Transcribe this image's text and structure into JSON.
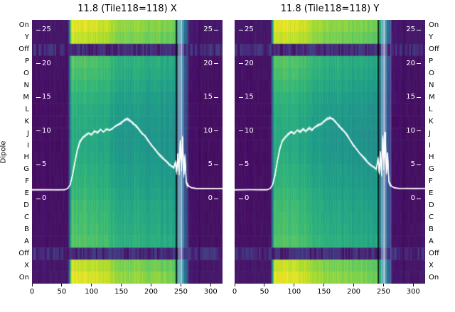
{
  "figure": {
    "background": "#ffffff",
    "overlay_color": "#ffffff",
    "colormap": "viridis",
    "dipole_axis_label": "Dipole",
    "row_labels": [
      "On",
      "Y",
      "Off",
      "P",
      "O",
      "N",
      "M",
      "L",
      "K",
      "J",
      "I",
      "H",
      "G",
      "F",
      "E",
      "D",
      "C",
      "B",
      "A",
      "Off",
      "X",
      "On"
    ],
    "x_tick_labels": [
      "0",
      "50",
      "100",
      "150",
      "200",
      "250",
      "300"
    ],
    "y_tick_labels": [
      "25",
      "20",
      "15",
      "10",
      "5",
      "0"
    ]
  },
  "chart_data": [
    {
      "type": "heatmap",
      "title": "11.8 (Tile118=118) X",
      "x_range": [
        0,
        320
      ],
      "x_ticks": [
        0,
        50,
        100,
        150,
        200,
        250,
        300
      ],
      "row_categories": [
        "On",
        "Y",
        "Off",
        "P",
        "O",
        "N",
        "M",
        "L",
        "K",
        "J",
        "I",
        "H",
        "G",
        "F",
        "E",
        "D",
        "C",
        "B",
        "A",
        "Off",
        "X",
        "On"
      ],
      "row_levels": [
        0.97,
        0.93,
        0.07,
        0.74,
        0.72,
        0.69,
        0.66,
        0.64,
        0.63,
        0.62,
        0.62,
        0.63,
        0.65,
        0.66,
        0.68,
        0.7,
        0.71,
        0.72,
        0.74,
        0.07,
        0.93,
        0.97
      ],
      "column_profile": [
        [
          0,
          0.07
        ],
        [
          60,
          0.07
        ],
        [
          66,
          1.0
        ],
        [
          112,
          0.97
        ],
        [
          140,
          0.88
        ],
        [
          178,
          0.85
        ],
        [
          210,
          0.83
        ],
        [
          240,
          0.8
        ],
        [
          248,
          0.52
        ],
        [
          258,
          0.38
        ],
        [
          264,
          0.07
        ],
        [
          320,
          0.07
        ]
      ],
      "stripes": [
        {
          "x": 16,
          "w": 2,
          "alpha": 0.5,
          "color": "#5a0c8e"
        },
        {
          "x": 24,
          "w": 1.5,
          "alpha": 0.45,
          "color": "#43077a"
        },
        {
          "x": 242.5,
          "w": 2,
          "alpha": 0.85,
          "color": "#06030c"
        },
        {
          "x": 247,
          "w": 1.5,
          "alpha": 0.8,
          "color": "#bfe0ff"
        },
        {
          "x": 250.5,
          "w": 1.5,
          "alpha": 0.95,
          "color": "#ffffff"
        },
        {
          "x": 253.5,
          "w": 1.5,
          "alpha": 0.7,
          "color": "#8fb8ff"
        },
        {
          "x": 273,
          "w": 2,
          "alpha": 0.55,
          "color": "#4b0a82"
        },
        {
          "x": 281,
          "w": 2,
          "alpha": 0.45,
          "color": "#36065f"
        }
      ],
      "line_y_ticks": [
        25,
        20,
        15,
        10,
        5,
        0
      ],
      "line_points": [
        [
          0,
          1.3
        ],
        [
          25,
          1.3
        ],
        [
          45,
          1.3
        ],
        [
          55,
          1.3
        ],
        [
          60,
          1.5
        ],
        [
          64,
          2.0
        ],
        [
          68,
          3.4
        ],
        [
          72,
          5.4
        ],
        [
          76,
          7.2
        ],
        [
          80,
          8.3
        ],
        [
          85,
          9.0
        ],
        [
          90,
          9.4
        ],
        [
          95,
          9.7
        ],
        [
          100,
          9.5
        ],
        [
          105,
          10.0
        ],
        [
          110,
          9.8
        ],
        [
          115,
          10.2
        ],
        [
          120,
          9.9
        ],
        [
          125,
          10.3
        ],
        [
          130,
          10.1
        ],
        [
          135,
          10.4
        ],
        [
          140,
          10.7
        ],
        [
          145,
          10.9
        ],
        [
          150,
          11.2
        ],
        [
          155,
          11.6
        ],
        [
          160,
          11.8
        ],
        [
          165,
          11.5
        ],
        [
          170,
          11.1
        ],
        [
          175,
          10.7
        ],
        [
          180,
          10.2
        ],
        [
          185,
          9.7
        ],
        [
          190,
          9.2
        ],
        [
          195,
          8.6
        ],
        [
          200,
          8.0
        ],
        [
          205,
          7.4
        ],
        [
          210,
          6.9
        ],
        [
          215,
          6.4
        ],
        [
          220,
          5.9
        ],
        [
          225,
          5.5
        ],
        [
          230,
          5.1
        ],
        [
          234,
          4.8
        ],
        [
          238,
          4.5
        ],
        [
          241,
          5.4
        ],
        [
          243,
          3.9
        ],
        [
          245,
          6.6
        ],
        [
          247,
          3.6
        ],
        [
          249,
          8.4
        ],
        [
          251,
          4.1
        ],
        [
          253,
          9.0
        ],
        [
          255,
          3.5
        ],
        [
          257,
          6.2
        ],
        [
          259,
          2.6
        ],
        [
          261,
          2.0
        ],
        [
          264,
          1.8
        ],
        [
          268,
          1.6
        ],
        [
          275,
          1.5
        ],
        [
          290,
          1.5
        ],
        [
          305,
          1.5
        ],
        [
          320,
          1.5
        ]
      ]
    },
    {
      "type": "heatmap",
      "title": "11.8 (Tile118=118) Y",
      "x_range": [
        0,
        320
      ],
      "x_ticks": [
        0,
        50,
        100,
        150,
        200,
        250,
        300
      ],
      "row_categories": [
        "On",
        "Y",
        "Off",
        "P",
        "O",
        "N",
        "M",
        "L",
        "K",
        "J",
        "I",
        "H",
        "G",
        "F",
        "E",
        "D",
        "C",
        "B",
        "A",
        "Off",
        "X",
        "On"
      ],
      "row_levels": [
        0.97,
        0.93,
        0.07,
        0.74,
        0.72,
        0.69,
        0.66,
        0.64,
        0.63,
        0.62,
        0.62,
        0.63,
        0.65,
        0.66,
        0.68,
        0.7,
        0.71,
        0.72,
        0.74,
        0.07,
        0.93,
        0.97
      ],
      "column_profile": [
        [
          0,
          0.07
        ],
        [
          60,
          0.07
        ],
        [
          66,
          1.0
        ],
        [
          112,
          0.97
        ],
        [
          140,
          0.88
        ],
        [
          178,
          0.85
        ],
        [
          210,
          0.83
        ],
        [
          240,
          0.8
        ],
        [
          248,
          0.52
        ],
        [
          258,
          0.38
        ],
        [
          264,
          0.07
        ],
        [
          320,
          0.07
        ]
      ],
      "stripes": [
        {
          "x": 18,
          "w": 2,
          "alpha": 0.5,
          "color": "#5a0c8e"
        },
        {
          "x": 26,
          "w": 1.5,
          "alpha": 0.4,
          "color": "#43077a"
        },
        {
          "x": 241.5,
          "w": 2,
          "alpha": 0.85,
          "color": "#06030c"
        },
        {
          "x": 247.5,
          "w": 1.5,
          "alpha": 0.8,
          "color": "#bfe0ff"
        },
        {
          "x": 251,
          "w": 1.5,
          "alpha": 0.95,
          "color": "#ffffff"
        },
        {
          "x": 254,
          "w": 1.5,
          "alpha": 0.7,
          "color": "#8fb8ff"
        },
        {
          "x": 262,
          "w": 1.5,
          "alpha": 0.5,
          "color": "#6f8fe0"
        },
        {
          "x": 275,
          "w": 2,
          "alpha": 0.55,
          "color": "#4b0a82"
        },
        {
          "x": 284,
          "w": 2,
          "alpha": 0.45,
          "color": "#36065f"
        }
      ],
      "line_y_ticks": [
        25,
        20,
        15,
        10,
        5,
        0
      ],
      "line_points": [
        [
          0,
          1.3
        ],
        [
          25,
          1.3
        ],
        [
          45,
          1.3
        ],
        [
          55,
          1.3
        ],
        [
          60,
          1.5
        ],
        [
          64,
          2.1
        ],
        [
          68,
          3.6
        ],
        [
          72,
          5.6
        ],
        [
          76,
          7.4
        ],
        [
          80,
          8.5
        ],
        [
          85,
          9.1
        ],
        [
          90,
          9.5
        ],
        [
          95,
          9.8
        ],
        [
          100,
          9.6
        ],
        [
          105,
          10.1
        ],
        [
          110,
          9.9
        ],
        [
          115,
          10.3
        ],
        [
          120,
          10.0
        ],
        [
          125,
          10.4
        ],
        [
          130,
          10.2
        ],
        [
          135,
          10.6
        ],
        [
          140,
          10.9
        ],
        [
          145,
          11.1
        ],
        [
          150,
          11.4
        ],
        [
          155,
          11.8
        ],
        [
          160,
          12.0
        ],
        [
          165,
          11.7
        ],
        [
          170,
          11.3
        ],
        [
          175,
          10.8
        ],
        [
          180,
          10.3
        ],
        [
          185,
          9.8
        ],
        [
          190,
          9.2
        ],
        [
          195,
          8.5
        ],
        [
          200,
          7.9
        ],
        [
          205,
          7.3
        ],
        [
          210,
          6.7
        ],
        [
          215,
          6.2
        ],
        [
          220,
          5.7
        ],
        [
          225,
          5.3
        ],
        [
          230,
          4.9
        ],
        [
          234,
          4.6
        ],
        [
          238,
          4.4
        ],
        [
          241,
          5.8
        ],
        [
          243,
          3.8
        ],
        [
          245,
          7.0
        ],
        [
          247,
          3.5
        ],
        [
          249,
          9.0
        ],
        [
          251,
          4.3
        ],
        [
          253,
          9.8
        ],
        [
          255,
          3.7
        ],
        [
          257,
          6.8
        ],
        [
          259,
          2.7
        ],
        [
          261,
          2.0
        ],
        [
          264,
          1.8
        ],
        [
          268,
          1.6
        ],
        [
          275,
          1.5
        ],
        [
          290,
          1.5
        ],
        [
          305,
          1.5
        ],
        [
          320,
          1.5
        ]
      ]
    }
  ]
}
